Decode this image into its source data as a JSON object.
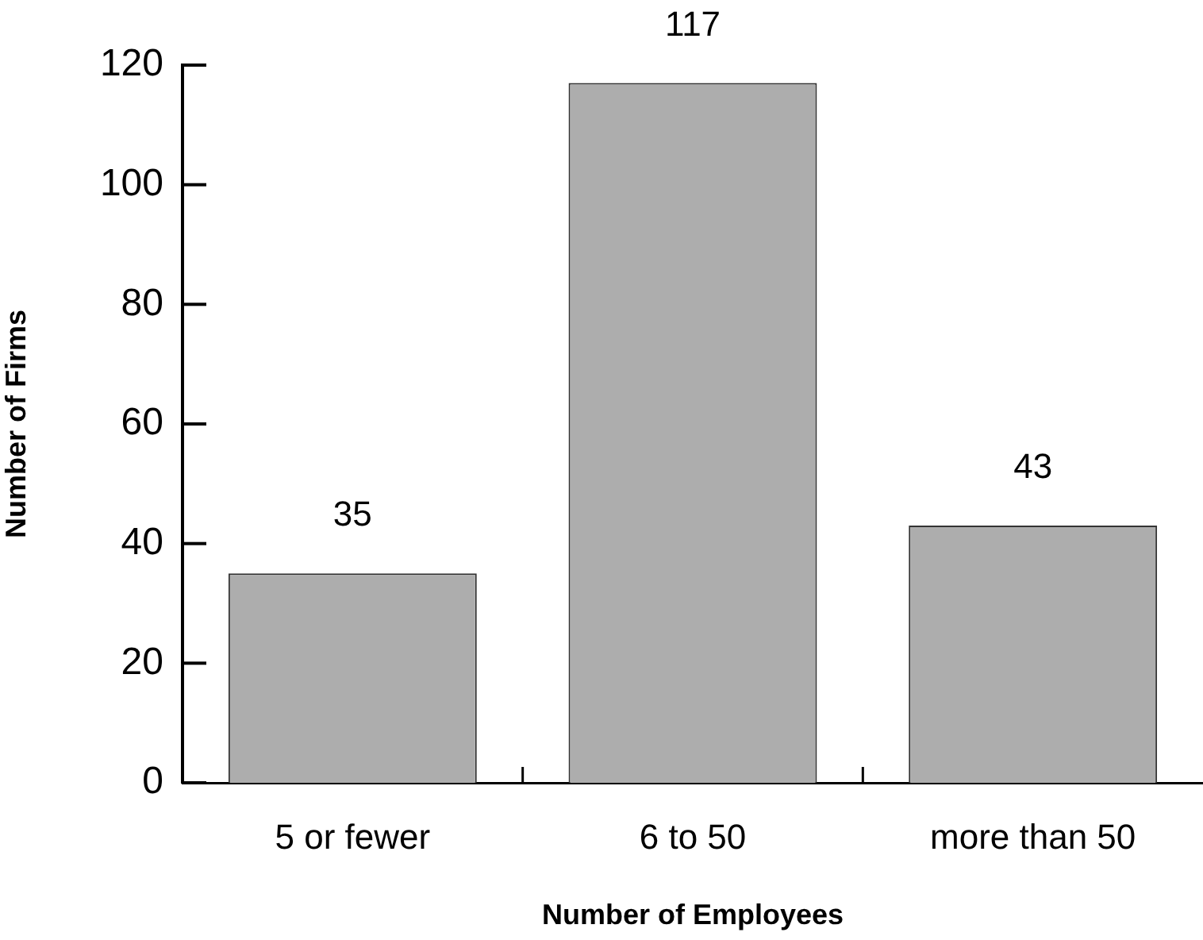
{
  "chart_data": {
    "type": "bar",
    "xlabel": "Number of Employees",
    "ylabel": "Number of Firms",
    "categories": [
      "5 or fewer",
      "6 to 50",
      "more than 50"
    ],
    "values": [
      35,
      117,
      43
    ],
    "color": "#adadad",
    "ylim": [
      0,
      120
    ],
    "yticks": [
      0,
      20,
      40,
      60,
      80,
      100,
      120
    ],
    "data_labels": true
  }
}
